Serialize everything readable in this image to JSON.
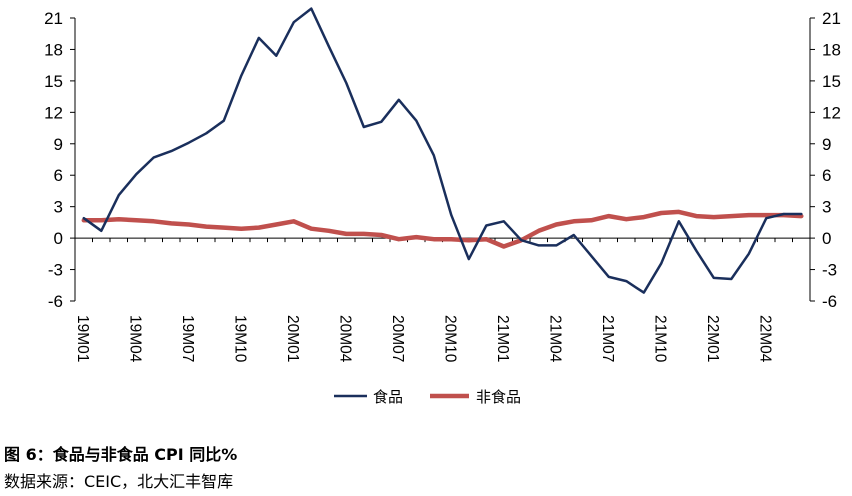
{
  "chart_data": {
    "type": "line",
    "title": "",
    "xlabel": "",
    "ylabel": "",
    "ylim": [
      -6,
      21
    ],
    "yticks": [
      21,
      18,
      15,
      12,
      9,
      6,
      3,
      0,
      -3,
      -6
    ],
    "ytick_labels": [
      "21",
      "18",
      "15",
      "12",
      "9",
      "6",
      "3",
      "0",
      "-3",
      "-6"
    ],
    "secondary_y": true,
    "grid": false,
    "legend_position": "bottom",
    "x": [
      "19M01",
      "19M02",
      "19M03",
      "19M04",
      "19M05",
      "19M06",
      "19M07",
      "19M08",
      "19M09",
      "19M10",
      "19M11",
      "19M12",
      "20M01",
      "20M02",
      "20M03",
      "20M04",
      "20M05",
      "20M06",
      "20M07",
      "20M08",
      "20M09",
      "20M10",
      "20M11",
      "20M12",
      "21M01",
      "21M02",
      "21M03",
      "21M04",
      "21M05",
      "21M06",
      "21M07",
      "21M08",
      "21M09",
      "21M10",
      "21M11",
      "21M12",
      "22M01",
      "22M02",
      "22M03",
      "22M04",
      "22M05",
      "22M06"
    ],
    "x_tick_labels": [
      "19M01",
      "19M04",
      "19M07",
      "19M10",
      "20M01",
      "20M04",
      "20M07",
      "20M10",
      "21M01",
      "21M04",
      "21M07",
      "21M10",
      "22M01",
      "22M04"
    ],
    "series": [
      {
        "name": "食品",
        "color": "#1a2f5c",
        "values": [
          1.9,
          0.7,
          4.1,
          6.1,
          7.7,
          8.3,
          9.1,
          10.0,
          11.2,
          15.5,
          19.1,
          17.4,
          20.6,
          21.9,
          18.3,
          14.8,
          10.6,
          11.1,
          13.2,
          11.2,
          7.9,
          2.2,
          -2.0,
          1.2,
          1.6,
          -0.2,
          -0.7,
          -0.7,
          0.3,
          -1.7,
          -3.7,
          -4.1,
          -5.2,
          -2.4,
          1.6,
          -1.2,
          -3.8,
          -3.9,
          -1.5,
          1.9,
          2.3,
          2.3
        ]
      },
      {
        "name": "非食品",
        "color": "#c0504d",
        "values": [
          1.7,
          1.7,
          1.8,
          1.7,
          1.6,
          1.4,
          1.3,
          1.1,
          1.0,
          0.9,
          1.0,
          1.3,
          1.6,
          0.9,
          0.7,
          0.4,
          0.4,
          0.3,
          -0.1,
          0.1,
          -0.1,
          -0.1,
          -0.2,
          -0.1,
          -0.8,
          -0.2,
          0.7,
          1.3,
          1.6,
          1.7,
          2.1,
          1.8,
          2.0,
          2.4,
          2.5,
          2.1,
          2.0,
          2.1,
          2.2,
          2.2,
          2.2,
          2.1
        ]
      }
    ]
  },
  "figure_caption": "图 6：食品与非食品 CPI 同比%",
  "source_caption": "数据来源：CEIC，北大汇丰智库"
}
